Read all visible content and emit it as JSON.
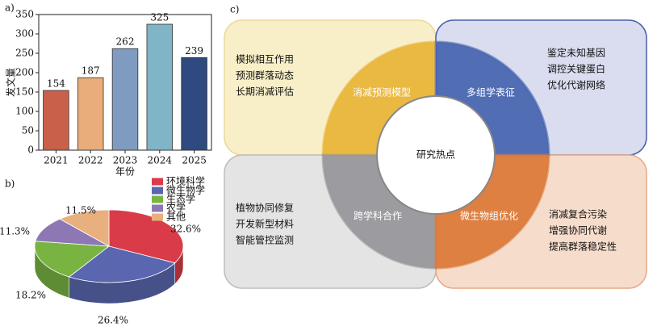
{
  "chart_data": [
    {
      "type": "bar",
      "panel": "a)",
      "ylabel": "发文量",
      "xlabel": "年份",
      "categories": [
        "2021",
        "2022",
        "2023",
        "2024",
        "2025"
      ],
      "values": [
        154,
        187,
        262,
        325,
        239
      ],
      "colors": [
        "#c9604a",
        "#e8ad7a",
        "#7f9cc0",
        "#7fb5c6",
        "#2e4a80"
      ],
      "ylim": [
        0,
        350
      ],
      "yticks": [
        0,
        50,
        100,
        150,
        200,
        250,
        300,
        350
      ]
    },
    {
      "type": "pie",
      "panel": "b)",
      "categories": [
        "环境科学",
        "微生物学",
        "生态学",
        "农学",
        "其他"
      ],
      "values": [
        32.6,
        26.4,
        18.2,
        11.3,
        11.5
      ],
      "value_labels": [
        "32.6%",
        "26.4%",
        "18.2%",
        "11.3%",
        "11.5%"
      ],
      "colors": [
        "#d93b48",
        "#5a66b0",
        "#79b443",
        "#8e78b3",
        "#e8b07f"
      ]
    }
  ],
  "diagram": {
    "panel": "c)",
    "center": "研究热点",
    "quadrants": [
      {
        "label": "消减预测模型",
        "items": [
          "模拟相互作用",
          "预测群落动态",
          "长期消减评估"
        ]
      },
      {
        "label": "多组学表征",
        "items": [
          "鉴定未知基因",
          "调控关键蛋白",
          "优化代谢网络"
        ]
      },
      {
        "label": "跨学科合作",
        "items": [
          "植物协同修复",
          "开发新型材料",
          "智能管控监测"
        ]
      },
      {
        "label": "微生物组优化",
        "items": [
          "消减复合污染",
          "增强协同代谢",
          "提高群落稳定性"
        ]
      }
    ]
  }
}
